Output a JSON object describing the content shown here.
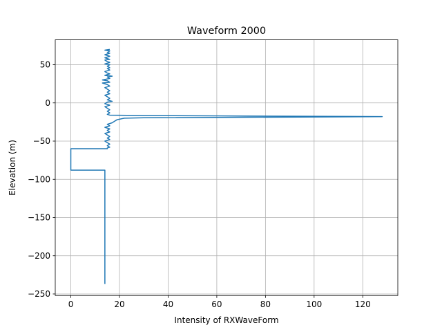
{
  "chart_data": {
    "type": "line",
    "title": "Waveform 2000",
    "xlabel": "Intensity of RXWaveForm",
    "ylabel": "Elevation (m)",
    "xlim": [
      -6.4,
      134.4
    ],
    "ylim": [
      -252,
      82.5
    ],
    "xticks": [
      0,
      20,
      40,
      60,
      80,
      100,
      120
    ],
    "yticks": [
      -250,
      -200,
      -150,
      -100,
      -50,
      0,
      50
    ],
    "xtick_labels": [
      "0",
      "20",
      "40",
      "60",
      "80",
      "100",
      "120"
    ],
    "ytick_labels": [
      "−250",
      "−200",
      "−150",
      "−100",
      "−50",
      "0",
      "50"
    ],
    "grid": true,
    "series_color": "#1f77b4",
    "series": [
      {
        "points": [
          [
            16,
            70
          ],
          [
            14,
            69
          ],
          [
            16,
            68
          ],
          [
            15,
            66
          ],
          [
            16,
            65
          ],
          [
            14,
            63
          ],
          [
            15,
            62
          ],
          [
            16,
            61
          ],
          [
            14,
            59
          ],
          [
            16,
            57
          ],
          [
            14,
            56
          ],
          [
            15,
            54
          ],
          [
            16,
            53
          ],
          [
            14,
            51
          ],
          [
            16,
            50
          ],
          [
            15,
            48
          ],
          [
            16,
            46
          ],
          [
            15,
            45
          ],
          [
            16,
            43
          ],
          [
            14,
            41
          ],
          [
            15,
            39
          ],
          [
            16,
            38
          ],
          [
            14,
            36
          ],
          [
            17,
            35
          ],
          [
            15,
            34
          ],
          [
            16,
            32
          ],
          [
            13,
            30
          ],
          [
            15,
            29
          ],
          [
            16,
            27
          ],
          [
            13,
            26
          ],
          [
            15,
            24
          ],
          [
            16,
            22
          ],
          [
            14,
            20
          ],
          [
            15,
            18
          ],
          [
            16,
            16
          ],
          [
            15,
            14
          ],
          [
            16,
            12
          ],
          [
            14,
            10
          ],
          [
            15,
            8
          ],
          [
            16,
            6
          ],
          [
            15,
            4
          ],
          [
            17,
            2
          ],
          [
            15,
            1
          ],
          [
            14,
            -1
          ],
          [
            16,
            -3
          ],
          [
            14,
            -5
          ],
          [
            15,
            -7
          ],
          [
            16,
            -9
          ],
          [
            15,
            -11
          ],
          [
            16,
            -13
          ],
          [
            15,
            -15
          ],
          [
            16,
            -16
          ],
          [
            30,
            -16.5
          ],
          [
            128,
            -18
          ],
          [
            60,
            -19
          ],
          [
            30,
            -19.5
          ],
          [
            22,
            -20
          ],
          [
            19,
            -22
          ],
          [
            18,
            -24
          ],
          [
            17,
            -26
          ],
          [
            15,
            -28
          ],
          [
            16,
            -30
          ],
          [
            14,
            -32
          ],
          [
            16,
            -34
          ],
          [
            15,
            -36
          ],
          [
            16,
            -38
          ],
          [
            14,
            -40
          ],
          [
            15,
            -42
          ],
          [
            16,
            -44
          ],
          [
            15,
            -46
          ],
          [
            16,
            -48
          ],
          [
            14,
            -50
          ],
          [
            15,
            -52
          ],
          [
            16,
            -54
          ],
          [
            15,
            -56
          ],
          [
            16,
            -58
          ],
          [
            15,
            -59
          ],
          [
            15,
            -60
          ],
          [
            0,
            -60
          ],
          [
            0,
            -88
          ],
          [
            14,
            -88
          ],
          [
            14,
            -237
          ]
        ]
      }
    ]
  }
}
